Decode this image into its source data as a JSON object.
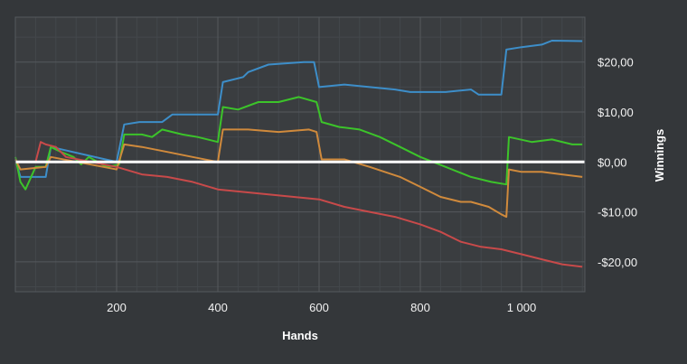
{
  "chart_data": {
    "type": "line",
    "title": "",
    "xlabel": "Hands",
    "ylabel": "Winnings",
    "xlim": [
      0,
      1125
    ],
    "ylim": [
      -26,
      29
    ],
    "x_ticks": [
      200,
      400,
      600,
      800,
      1000
    ],
    "x_tick_labels": [
      "200",
      "400",
      "600",
      "800",
      "1 000"
    ],
    "y_ticks": [
      -20,
      -10,
      0,
      10,
      20
    ],
    "y_tick_labels": [
      "-$20,00",
      "-$10,00",
      "$0,00",
      "$10,00",
      "$20,00"
    ],
    "grid": true,
    "y_axis_side": "right",
    "zero_line": true,
    "legend": "none",
    "series": [
      {
        "color": "#3d8ec9",
        "points": [
          [
            0,
            0.5
          ],
          [
            10,
            -3
          ],
          [
            60,
            -3
          ],
          [
            70,
            3
          ],
          [
            200,
            0
          ],
          [
            215,
            7.5
          ],
          [
            245,
            8
          ],
          [
            290,
            8
          ],
          [
            310,
            9.5
          ],
          [
            400,
            9.5
          ],
          [
            410,
            16
          ],
          [
            450,
            17
          ],
          [
            460,
            18
          ],
          [
            500,
            19.5
          ],
          [
            570,
            20
          ],
          [
            590,
            20
          ],
          [
            600,
            15
          ],
          [
            650,
            15.5
          ],
          [
            700,
            15
          ],
          [
            750,
            14.5
          ],
          [
            780,
            14
          ],
          [
            850,
            14
          ],
          [
            900,
            14.5
          ],
          [
            915,
            13.5
          ],
          [
            960,
            13.5
          ],
          [
            970,
            22.5
          ],
          [
            1000,
            23
          ],
          [
            1040,
            23.5
          ],
          [
            1060,
            24.3
          ],
          [
            1120,
            24.2
          ]
        ]
      },
      {
        "color": "#3cc42a",
        "points": [
          [
            0,
            1
          ],
          [
            10,
            -4
          ],
          [
            20,
            -5.5
          ],
          [
            40,
            -1
          ],
          [
            60,
            -1
          ],
          [
            70,
            3
          ],
          [
            90,
            2
          ],
          [
            115,
            1
          ],
          [
            130,
            -0.5
          ],
          [
            145,
            1
          ],
          [
            180,
            -1
          ],
          [
            205,
            -0.5
          ],
          [
            215,
            5.5
          ],
          [
            250,
            5.5
          ],
          [
            270,
            5
          ],
          [
            290,
            6.5
          ],
          [
            330,
            5.5
          ],
          [
            360,
            5
          ],
          [
            400,
            4
          ],
          [
            410,
            11
          ],
          [
            440,
            10.5
          ],
          [
            480,
            12
          ],
          [
            520,
            12
          ],
          [
            560,
            13
          ],
          [
            595,
            12
          ],
          [
            605,
            8
          ],
          [
            640,
            7
          ],
          [
            680,
            6.5
          ],
          [
            720,
            5
          ],
          [
            760,
            3
          ],
          [
            800,
            1
          ],
          [
            850,
            -1
          ],
          [
            900,
            -3
          ],
          [
            940,
            -4
          ],
          [
            970,
            -4.5
          ],
          [
            975,
            5
          ],
          [
            1020,
            4
          ],
          [
            1060,
            4.5
          ],
          [
            1100,
            3.5
          ],
          [
            1120,
            3.5
          ]
        ]
      },
      {
        "color": "#d08a3c",
        "points": [
          [
            0,
            0.5
          ],
          [
            10,
            -1.5
          ],
          [
            60,
            -1
          ],
          [
            70,
            1
          ],
          [
            200,
            -1.5
          ],
          [
            215,
            3.5
          ],
          [
            250,
            3
          ],
          [
            300,
            2
          ],
          [
            350,
            1
          ],
          [
            400,
            0
          ],
          [
            410,
            6.5
          ],
          [
            460,
            6.5
          ],
          [
            520,
            6
          ],
          [
            580,
            6.5
          ],
          [
            595,
            6
          ],
          [
            605,
            0.5
          ],
          [
            650,
            0.5
          ],
          [
            700,
            -1
          ],
          [
            760,
            -3
          ],
          [
            800,
            -5
          ],
          [
            840,
            -7
          ],
          [
            880,
            -8
          ],
          [
            900,
            -8
          ],
          [
            935,
            -9
          ],
          [
            960,
            -10.5
          ],
          [
            970,
            -11
          ],
          [
            975,
            -1.5
          ],
          [
            1000,
            -2
          ],
          [
            1040,
            -2
          ],
          [
            1080,
            -2.5
          ],
          [
            1120,
            -3
          ]
        ]
      },
      {
        "color": "#c84a4a",
        "points": [
          [
            0,
            0
          ],
          [
            40,
            0
          ],
          [
            50,
            4
          ],
          [
            60,
            3.5
          ],
          [
            80,
            3
          ],
          [
            100,
            1
          ],
          [
            150,
            0
          ],
          [
            200,
            -1
          ],
          [
            250,
            -2.5
          ],
          [
            300,
            -3
          ],
          [
            350,
            -4
          ],
          [
            400,
            -5.5
          ],
          [
            450,
            -6
          ],
          [
            500,
            -6.5
          ],
          [
            550,
            -7
          ],
          [
            600,
            -7.5
          ],
          [
            650,
            -9
          ],
          [
            700,
            -10
          ],
          [
            750,
            -11
          ],
          [
            800,
            -12.5
          ],
          [
            840,
            -14
          ],
          [
            880,
            -16
          ],
          [
            920,
            -17
          ],
          [
            960,
            -17.5
          ],
          [
            1000,
            -18.5
          ],
          [
            1040,
            -19.5
          ],
          [
            1080,
            -20.5
          ],
          [
            1120,
            -21
          ]
        ]
      }
    ]
  }
}
